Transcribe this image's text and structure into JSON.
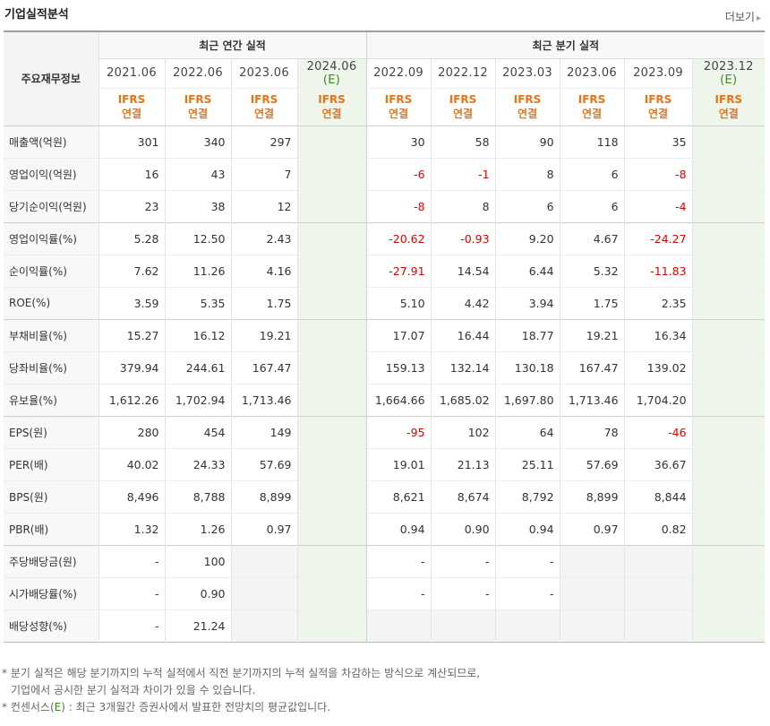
{
  "header": {
    "title": "기업실적분석",
    "more_label": "더보기",
    "more_arrow": "▸"
  },
  "table": {
    "corner_label": "주요재무정보",
    "annual_group": "최근 연간 실적",
    "quarter_group": "최근 분기 실적",
    "columns": [
      {
        "date": "2021.06",
        "est": "",
        "ifrs": "IFRS",
        "basis": "연결"
      },
      {
        "date": "2022.06",
        "est": "",
        "ifrs": "IFRS",
        "basis": "연결"
      },
      {
        "date": "2023.06",
        "est": "",
        "ifrs": "IFRS",
        "basis": "연결"
      },
      {
        "date": "2024.06",
        "est": "(E)",
        "ifrs": "IFRS",
        "basis": "연결"
      },
      {
        "date": "2022.09",
        "est": "",
        "ifrs": "IFRS",
        "basis": "연결"
      },
      {
        "date": "2022.12",
        "est": "",
        "ifrs": "IFRS",
        "basis": "연결"
      },
      {
        "date": "2023.03",
        "est": "",
        "ifrs": "IFRS",
        "basis": "연결"
      },
      {
        "date": "2023.06",
        "est": "",
        "ifrs": "IFRS",
        "basis": "연결"
      },
      {
        "date": "2023.09",
        "est": "",
        "ifrs": "IFRS",
        "basis": "연결"
      },
      {
        "date": "2023.12",
        "est": "(E)",
        "ifrs": "IFRS",
        "basis": "연결"
      }
    ],
    "rows": [
      {
        "label": "매출액(억원)",
        "values": [
          "301",
          "340",
          "297",
          "",
          "30",
          "58",
          "90",
          "118",
          "35",
          ""
        ]
      },
      {
        "label": "영업이익(억원)",
        "values": [
          "16",
          "43",
          "7",
          "",
          "-6",
          "-1",
          "8",
          "6",
          "-8",
          ""
        ]
      },
      {
        "label": "당기순이익(억원)",
        "values": [
          "23",
          "38",
          "12",
          "",
          "-8",
          "8",
          "6",
          "6",
          "-4",
          ""
        ]
      },
      {
        "label": "영업이익률(%)",
        "values": [
          "5.28",
          "12.50",
          "2.43",
          "",
          "-20.62",
          "-0.93",
          "9.20",
          "4.67",
          "-24.27",
          ""
        ]
      },
      {
        "label": "순이익률(%)",
        "values": [
          "7.62",
          "11.26",
          "4.16",
          "",
          "-27.91",
          "14.54",
          "6.44",
          "5.32",
          "-11.83",
          ""
        ]
      },
      {
        "label": "ROE(%)",
        "values": [
          "3.59",
          "5.35",
          "1.75",
          "",
          "5.10",
          "4.42",
          "3.94",
          "1.75",
          "2.35",
          ""
        ]
      },
      {
        "label": "부채비율(%)",
        "values": [
          "15.27",
          "16.12",
          "19.21",
          "",
          "17.07",
          "16.44",
          "18.77",
          "19.21",
          "16.34",
          ""
        ]
      },
      {
        "label": "당좌비율(%)",
        "values": [
          "379.94",
          "244.61",
          "167.47",
          "",
          "159.13",
          "132.14",
          "130.18",
          "167.47",
          "139.02",
          ""
        ]
      },
      {
        "label": "유보율(%)",
        "values": [
          "1,612.26",
          "1,702.94",
          "1,713.46",
          "",
          "1,664.66",
          "1,685.02",
          "1,697.80",
          "1,713.46",
          "1,704.20",
          ""
        ]
      },
      {
        "label": "EPS(원)",
        "values": [
          "280",
          "454",
          "149",
          "",
          "-95",
          "102",
          "64",
          "78",
          "-46",
          ""
        ]
      },
      {
        "label": "PER(배)",
        "values": [
          "40.02",
          "24.33",
          "57.69",
          "",
          "19.01",
          "21.13",
          "25.11",
          "57.69",
          "36.67",
          ""
        ]
      },
      {
        "label": "BPS(원)",
        "values": [
          "8,496",
          "8,788",
          "8,899",
          "",
          "8,621",
          "8,674",
          "8,792",
          "8,899",
          "8,844",
          ""
        ]
      },
      {
        "label": "PBR(배)",
        "values": [
          "1.32",
          "1.26",
          "0.97",
          "",
          "0.94",
          "0.90",
          "0.94",
          "0.97",
          "0.82",
          ""
        ]
      },
      {
        "label": "주당배당금(원)",
        "values": [
          "-",
          "100",
          "",
          "",
          "-",
          "-",
          "-",
          "",
          "",
          ""
        ]
      },
      {
        "label": "시가배당률(%)",
        "values": [
          "-",
          "0.90",
          "",
          "",
          "-",
          "-",
          "-",
          "",
          "",
          ""
        ]
      },
      {
        "label": "배당성향(%)",
        "values": [
          "-",
          "21.24",
          "",
          "",
          "",
          "",
          "",
          "",
          "",
          ""
        ]
      }
    ]
  },
  "notes": {
    "line1": "* 분기 실적은 해당 분기까지의 누적 실적에서 직전 분기까지의 누적 실적을 차감하는 방식으로 계산되므로,",
    "line2": "기업에서 공시한 분기 실적과 차이가 있을 수 있습니다.",
    "line3_prefix": "* 컨센서스(",
    "line3_e": "E",
    "line3_suffix": ") : 최근 3개월간 증권사에서 발표한 전망치의 평균값입니다."
  },
  "colors": {
    "negative": "#e00000",
    "ifrs": "#e8731a",
    "estimate_bg": "#eef5ea",
    "estimate_text": "#3b8a1f"
  }
}
